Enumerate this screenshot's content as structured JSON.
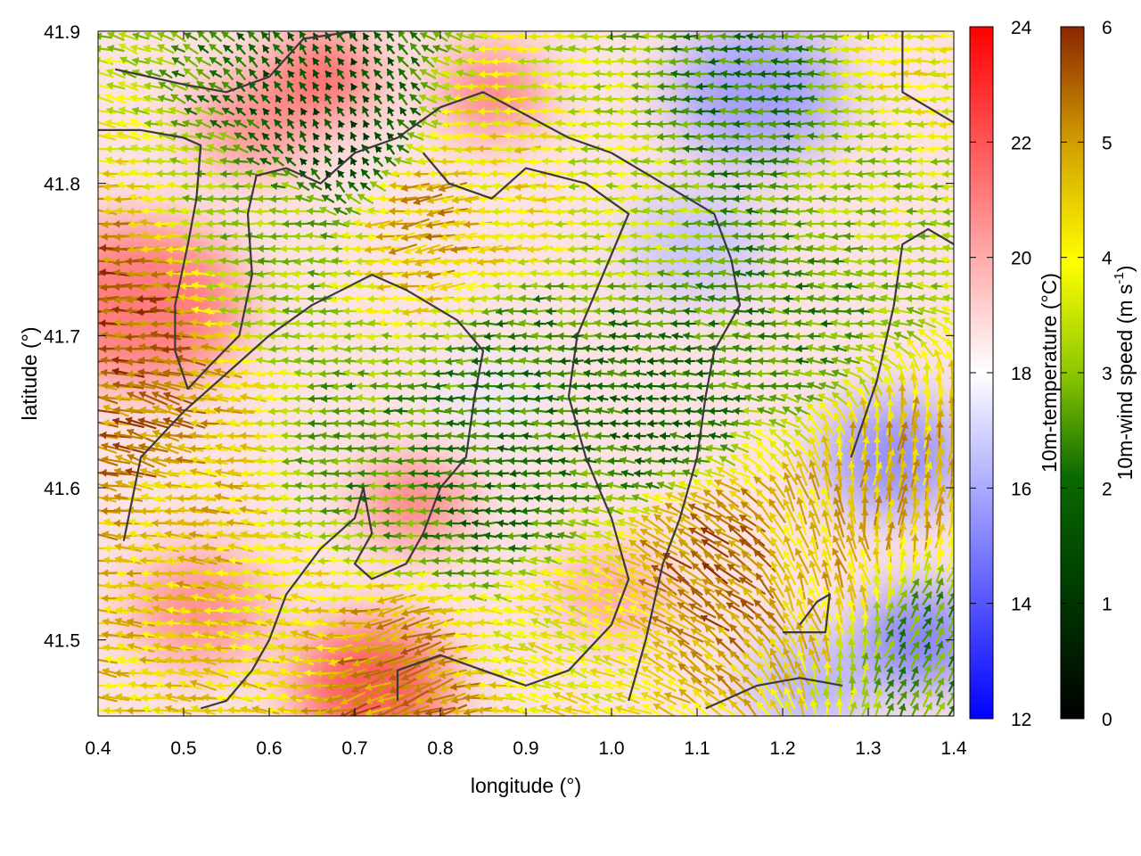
{
  "chart_data": {
    "type": "heatmap",
    "xlabel": "longitude (°)",
    "ylabel": "latitude (°)",
    "xlim": [
      0.4,
      1.4
    ],
    "ylim": [
      41.45,
      41.9
    ],
    "x_ticks": [
      "0.4",
      "0.5",
      "0.6",
      "0.7",
      "0.8",
      "0.9",
      "1.0",
      "1.1",
      "1.2",
      "1.3",
      "1.4"
    ],
    "y_ticks": [
      "41.5",
      "41.6",
      "41.7",
      "41.8",
      "41.9"
    ],
    "x_tick_values": [
      0.4,
      0.5,
      0.6,
      0.7,
      0.8,
      0.9,
      1.0,
      1.1,
      1.2,
      1.3,
      1.4
    ],
    "y_tick_values": [
      41.5,
      41.6,
      41.7,
      41.8,
      41.9
    ],
    "grid": false,
    "temperature_colorbar": {
      "label": "10m-temperature (°C)",
      "range": [
        12,
        24
      ],
      "ticks": [
        "12",
        "14",
        "16",
        "18",
        "20",
        "22",
        "24"
      ],
      "tick_values": [
        12,
        14,
        16,
        18,
        20,
        22,
        24
      ],
      "colors": [
        "#0000ff",
        "#ffffff",
        "#ff0000"
      ]
    },
    "wind_colorbar": {
      "label": "10m-wind speed (m s",
      "label_superscript": "-1",
      "label_suffix": ")",
      "range": [
        0,
        6
      ],
      "ticks": [
        "0",
        "1",
        "2",
        "3",
        "4",
        "5",
        "6"
      ],
      "tick_values": [
        0,
        1,
        2,
        3,
        4,
        5,
        6
      ],
      "colors": [
        "#000000",
        "#006400",
        "#8cc800",
        "#ffff00",
        "#d2a000",
        "#8b2500"
      ]
    },
    "temperature_regions": [
      {
        "lon": 0.45,
        "lat": 41.72,
        "t": 21.5,
        "r": 0.12
      },
      {
        "lon": 0.66,
        "lat": 41.87,
        "t": 22.5,
        "r": 0.06
      },
      {
        "lon": 0.58,
        "lat": 41.84,
        "t": 21.0,
        "r": 0.07
      },
      {
        "lon": 0.86,
        "lat": 41.86,
        "t": 21.5,
        "r": 0.06
      },
      {
        "lon": 0.52,
        "lat": 41.52,
        "t": 21.0,
        "r": 0.08
      },
      {
        "lon": 0.72,
        "lat": 41.47,
        "t": 22.5,
        "r": 0.09
      },
      {
        "lon": 0.77,
        "lat": 41.59,
        "t": 21.5,
        "r": 0.06
      },
      {
        "lon": 1.0,
        "lat": 41.53,
        "t": 20.5,
        "r": 0.06
      },
      {
        "lon": 1.17,
        "lat": 41.86,
        "t": 15.5,
        "r": 0.1
      },
      {
        "lon": 1.1,
        "lat": 41.76,
        "t": 16.5,
        "r": 0.08
      },
      {
        "lon": 1.33,
        "lat": 41.62,
        "t": 15.0,
        "r": 0.08
      },
      {
        "lon": 1.36,
        "lat": 41.5,
        "t": 14.5,
        "r": 0.07
      },
      {
        "lon": 1.23,
        "lat": 41.47,
        "t": 16.0,
        "r": 0.07
      },
      {
        "lon": 0.86,
        "lat": 41.66,
        "t": 17.5,
        "r": 0.06
      }
    ],
    "wind_regions": [
      {
        "lon": 0.42,
        "lat": 41.7,
        "speed": 5.6,
        "dir_deg": 180
      },
      {
        "lon": 0.45,
        "lat": 41.64,
        "speed": 5.3,
        "dir_deg": 165
      },
      {
        "lon": 0.5,
        "lat": 41.58,
        "speed": 4.6,
        "dir_deg": 175
      },
      {
        "lon": 0.6,
        "lat": 41.76,
        "speed": 3.0,
        "dir_deg": 180
      },
      {
        "lon": 0.68,
        "lat": 41.84,
        "speed": 1.2,
        "dir_deg": 120
      },
      {
        "lon": 0.8,
        "lat": 41.77,
        "speed": 4.9,
        "dir_deg": 190
      },
      {
        "lon": 0.88,
        "lat": 41.8,
        "speed": 4.2,
        "dir_deg": 180
      },
      {
        "lon": 1.0,
        "lat": 41.8,
        "speed": 3.5,
        "dir_deg": 180
      },
      {
        "lon": 1.15,
        "lat": 41.85,
        "speed": 2.2,
        "dir_deg": 180
      },
      {
        "lon": 0.9,
        "lat": 41.68,
        "speed": 2.2,
        "dir_deg": 180
      },
      {
        "lon": 0.72,
        "lat": 41.62,
        "speed": 2.6,
        "dir_deg": 180
      },
      {
        "lon": 0.85,
        "lat": 41.6,
        "speed": 2.0,
        "dir_deg": 180
      },
      {
        "lon": 1.05,
        "lat": 41.65,
        "speed": 1.9,
        "dir_deg": 175
      },
      {
        "lon": 1.2,
        "lat": 41.72,
        "speed": 2.4,
        "dir_deg": 175
      },
      {
        "lon": 1.25,
        "lat": 41.55,
        "speed": 4.6,
        "dir_deg": 110
      },
      {
        "lon": 1.12,
        "lat": 41.55,
        "speed": 5.4,
        "dir_deg": 145
      },
      {
        "lon": 1.35,
        "lat": 41.6,
        "speed": 4.8,
        "dir_deg": 80
      },
      {
        "lon": 1.38,
        "lat": 41.5,
        "speed": 2.5,
        "dir_deg": 60
      },
      {
        "lon": 0.6,
        "lat": 41.5,
        "speed": 4.3,
        "dir_deg": 170
      },
      {
        "lon": 0.75,
        "lat": 41.47,
        "speed": 5.2,
        "dir_deg": 200
      },
      {
        "lon": 0.95,
        "lat": 41.5,
        "speed": 4.0,
        "dir_deg": 160
      },
      {
        "lon": 1.3,
        "lat": 41.8,
        "speed": 3.2,
        "dir_deg": 180
      },
      {
        "lon": 1.37,
        "lat": 41.88,
        "speed": 4.0,
        "dir_deg": 180
      }
    ],
    "contours": [
      [
        [
          0.42,
          41.875
        ],
        [
          0.5,
          41.865
        ],
        [
          0.55,
          41.86
        ],
        [
          0.6,
          41.87
        ],
        [
          0.64,
          41.895
        ],
        [
          0.7,
          41.9
        ]
      ],
      [
        [
          0.4,
          41.835
        ],
        [
          0.45,
          41.835
        ],
        [
          0.5,
          41.83
        ],
        [
          0.52,
          41.825
        ],
        [
          0.515,
          41.79
        ],
        [
          0.505,
          41.76
        ],
        [
          0.49,
          41.72
        ],
        [
          0.49,
          41.69
        ],
        [
          0.505,
          41.665
        ],
        [
          0.53,
          41.68
        ],
        [
          0.565,
          41.7
        ],
        [
          0.58,
          41.74
        ],
        [
          0.575,
          41.78
        ],
        [
          0.585,
          41.805
        ],
        [
          0.62,
          41.81
        ],
        [
          0.66,
          41.8
        ],
        [
          0.7,
          41.82
        ],
        [
          0.75,
          41.83
        ],
        [
          0.8,
          41.85
        ],
        [
          0.85,
          41.86
        ],
        [
          0.9,
          41.845
        ],
        [
          0.95,
          41.83
        ],
        [
          1.0,
          41.82
        ],
        [
          1.06,
          41.8
        ],
        [
          1.12,
          41.78
        ],
        [
          1.14,
          41.75
        ],
        [
          1.15,
          41.72
        ],
        [
          1.12,
          41.69
        ],
        [
          1.11,
          41.66
        ],
        [
          1.1,
          41.62
        ],
        [
          1.08,
          41.58
        ],
        [
          1.06,
          41.55
        ],
        [
          1.04,
          41.5
        ],
        [
          1.02,
          41.46
        ]
      ],
      [
        [
          0.43,
          41.565
        ],
        [
          0.45,
          41.62
        ],
        [
          0.5,
          41.65
        ],
        [
          0.56,
          41.68
        ],
        [
          0.6,
          41.7
        ],
        [
          0.65,
          41.72
        ],
        [
          0.72,
          41.74
        ],
        [
          0.76,
          41.73
        ],
        [
          0.82,
          41.71
        ],
        [
          0.85,
          41.69
        ],
        [
          0.84,
          41.66
        ],
        [
          0.83,
          41.62
        ],
        [
          0.8,
          41.6
        ],
        [
          0.78,
          41.57
        ],
        [
          0.76,
          41.55
        ],
        [
          0.72,
          41.54
        ],
        [
          0.7,
          41.55
        ],
        [
          0.72,
          41.57
        ],
        [
          0.71,
          41.6
        ],
        [
          0.7,
          41.58
        ],
        [
          0.66,
          41.56
        ],
        [
          0.62,
          41.53
        ],
        [
          0.6,
          41.5
        ],
        [
          0.58,
          41.48
        ],
        [
          0.55,
          41.46
        ],
        [
          0.52,
          41.455
        ]
      ],
      [
        [
          0.75,
          41.46
        ],
        [
          0.75,
          41.48
        ],
        [
          0.8,
          41.49
        ],
        [
          0.85,
          41.48
        ],
        [
          0.9,
          41.47
        ],
        [
          0.95,
          41.48
        ],
        [
          1.0,
          41.51
        ],
        [
          1.02,
          41.54
        ],
        [
          1.0,
          41.58
        ],
        [
          0.97,
          41.62
        ],
        [
          0.95,
          41.66
        ],
        [
          0.96,
          41.7
        ],
        [
          0.99,
          41.74
        ],
        [
          1.02,
          41.78
        ],
        [
          0.97,
          41.8
        ],
        [
          0.9,
          41.81
        ],
        [
          0.86,
          41.79
        ],
        [
          0.81,
          41.8
        ],
        [
          0.78,
          41.82
        ]
      ],
      [
        [
          1.11,
          41.455
        ],
        [
          1.17,
          41.47
        ],
        [
          1.22,
          41.475
        ],
        [
          1.27,
          41.47
        ]
      ],
      [
        [
          1.2,
          41.505
        ],
        [
          1.25,
          41.505
        ],
        [
          1.255,
          41.53
        ],
        [
          1.24,
          41.525
        ],
        [
          1.22,
          41.51
        ]
      ],
      [
        [
          1.28,
          41.62
        ],
        [
          1.31,
          41.67
        ],
        [
          1.33,
          41.72
        ],
        [
          1.34,
          41.76
        ],
        [
          1.37,
          41.77
        ],
        [
          1.4,
          41.76
        ]
      ],
      [
        [
          1.34,
          41.9
        ],
        [
          1.34,
          41.86
        ],
        [
          1.37,
          41.85
        ],
        [
          1.4,
          41.84
        ]
      ]
    ]
  }
}
